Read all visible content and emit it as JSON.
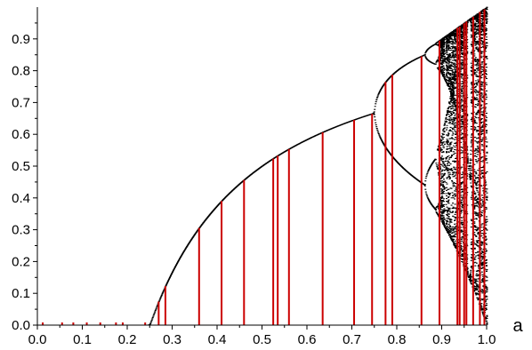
{
  "chart_data": {
    "type": "scatter",
    "title": "",
    "xlabel": "a",
    "ylabel": "",
    "xlim": [
      0.0,
      1.0
    ],
    "ylim": [
      0.0,
      1.0
    ],
    "grid": false,
    "legend": "none",
    "x_ticks": [
      "0.0",
      "0.1",
      "0.2",
      "0.3",
      "0.4",
      "0.5",
      "0.6",
      "0.7",
      "0.8",
      "0.9",
      "1.0"
    ],
    "x_tick_values": [
      0.0,
      0.1,
      0.2,
      0.3,
      0.4,
      0.5,
      0.6,
      0.7,
      0.8,
      0.9,
      1.0
    ],
    "y_ticks": [
      "0.0",
      "0.1",
      "0.2",
      "0.3",
      "0.4",
      "0.5",
      "0.6",
      "0.7",
      "0.8",
      "0.9"
    ],
    "y_tick_values": [
      0.0,
      0.1,
      0.2,
      0.3,
      0.4,
      0.5,
      0.6,
      0.7,
      0.8,
      0.9
    ],
    "colors": {
      "attractor": "#000000",
      "markers": "#cc0000",
      "axis": "#000000"
    },
    "series": [
      {
        "kind": "bifurcation",
        "description_map": "x -> 4 a x (1 - x)",
        "a_range": [
          0.0,
          1.0
        ],
        "color": "#000000"
      },
      {
        "kind": "vertical_markers",
        "color": "#cc0000",
        "a_values": [
          0.012,
          0.055,
          0.08,
          0.11,
          0.14,
          0.175,
          0.19,
          0.24,
          0.27,
          0.285,
          0.36,
          0.41,
          0.46,
          0.525,
          0.535,
          0.56,
          0.635,
          0.705,
          0.745,
          0.775,
          0.79,
          0.855,
          0.895,
          0.935,
          0.94,
          0.95,
          0.955,
          0.97,
          0.985,
          0.995
        ]
      }
    ]
  }
}
